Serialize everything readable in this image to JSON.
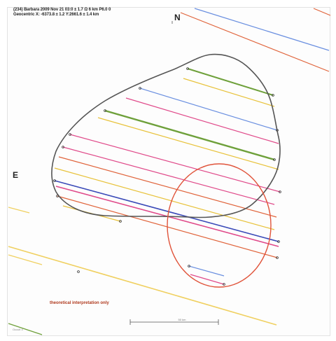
{
  "header": {
    "line1": "(234) Barbara 2009 Nov 21  03:0 ± 1.7 Ω 6 km  P6.0 0",
    "line2": "Geocentric  X: -6373.8 ± 1.2  Y:2661.6 ± 1.4 km"
  },
  "directions": {
    "north": "N",
    "east": "E"
  },
  "note": "theoretical interpretation only",
  "scale_label": "50 km",
  "credit": "Occult 4",
  "colors": {
    "profile": "#555555",
    "alternate_ellipse": "#e0533a",
    "chords": [
      "#e04a8a",
      "#6a8fe0",
      "#e8c23a",
      "#6ea03a",
      "#e0633a",
      "#3a4ab8",
      "#f0d060"
    ]
  }
}
